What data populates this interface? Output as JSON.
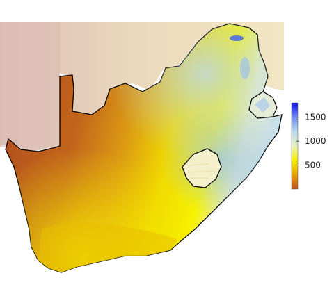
{
  "map": {
    "description_colors": {
      "low": "#b5501e",
      "mid_low": "#d48a1a",
      "mid": "#f3e800",
      "mid_high": "#ddeacd",
      "high": "#1010e8"
    },
    "background_colors": {
      "neighbor_left": "#dcbcb4",
      "neighbor_top": "#efe2be",
      "page": "#ffffff"
    },
    "border_color": "#000000"
  },
  "legend": {
    "ticks": [
      {
        "label": "1500",
        "value": 1500
      },
      {
        "label": "1000",
        "value": 1000
      },
      {
        "label": "500",
        "value": 500
      }
    ],
    "min_value": 0,
    "max_value": 1800,
    "gradient_colors": [
      "#b5501e",
      "#e6a000",
      "#f5ee00",
      "#e8f0c0",
      "#b8d8ee",
      "#6f8cf0",
      "#1010e8"
    ]
  }
}
